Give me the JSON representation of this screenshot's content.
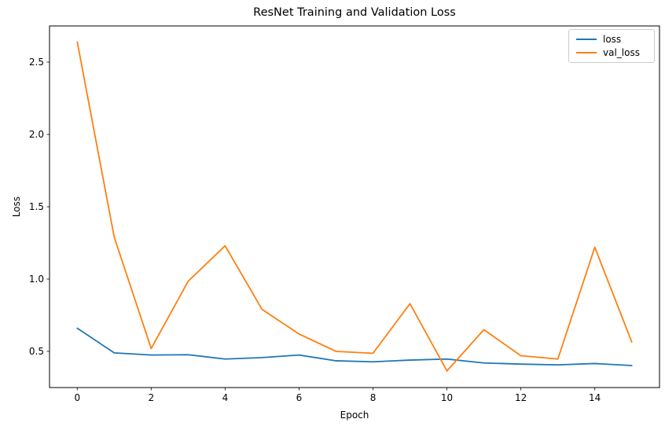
{
  "chart_data": {
    "type": "line",
    "title": "ResNet Training and Validation Loss",
    "xlabel": "Epoch",
    "ylabel": "Loss",
    "x": [
      0,
      1,
      2,
      3,
      4,
      5,
      6,
      7,
      8,
      9,
      10,
      11,
      12,
      13,
      14,
      15
    ],
    "series": [
      {
        "name": "loss",
        "color": "#1f77b4",
        "values": [
          0.66,
          0.49,
          0.475,
          0.477,
          0.447,
          0.457,
          0.475,
          0.435,
          0.428,
          0.44,
          0.447,
          0.42,
          0.412,
          0.407,
          0.416,
          0.402
        ]
      },
      {
        "name": "val_loss",
        "color": "#ff7f0e",
        "values": [
          2.64,
          1.29,
          0.52,
          0.985,
          1.23,
          0.79,
          0.62,
          0.5,
          0.487,
          0.83,
          0.365,
          0.65,
          0.47,
          0.447,
          1.22,
          0.565
        ]
      }
    ],
    "xlim": [
      -0.75,
      15.75
    ],
    "ylim": [
      0.25,
      2.75
    ],
    "xticks": [
      0,
      2,
      4,
      6,
      8,
      10,
      12,
      14
    ],
    "yticks": [
      0.5,
      1.0,
      1.5,
      2.0,
      2.5
    ],
    "grid": false,
    "legend_position": "upper right",
    "axis_color": "#000000",
    "background_color": "#ffffff"
  },
  "legend": {
    "items": [
      {
        "label": "loss",
        "color": "#1f77b4"
      },
      {
        "label": "val_loss",
        "color": "#ff7f0e"
      }
    ]
  }
}
